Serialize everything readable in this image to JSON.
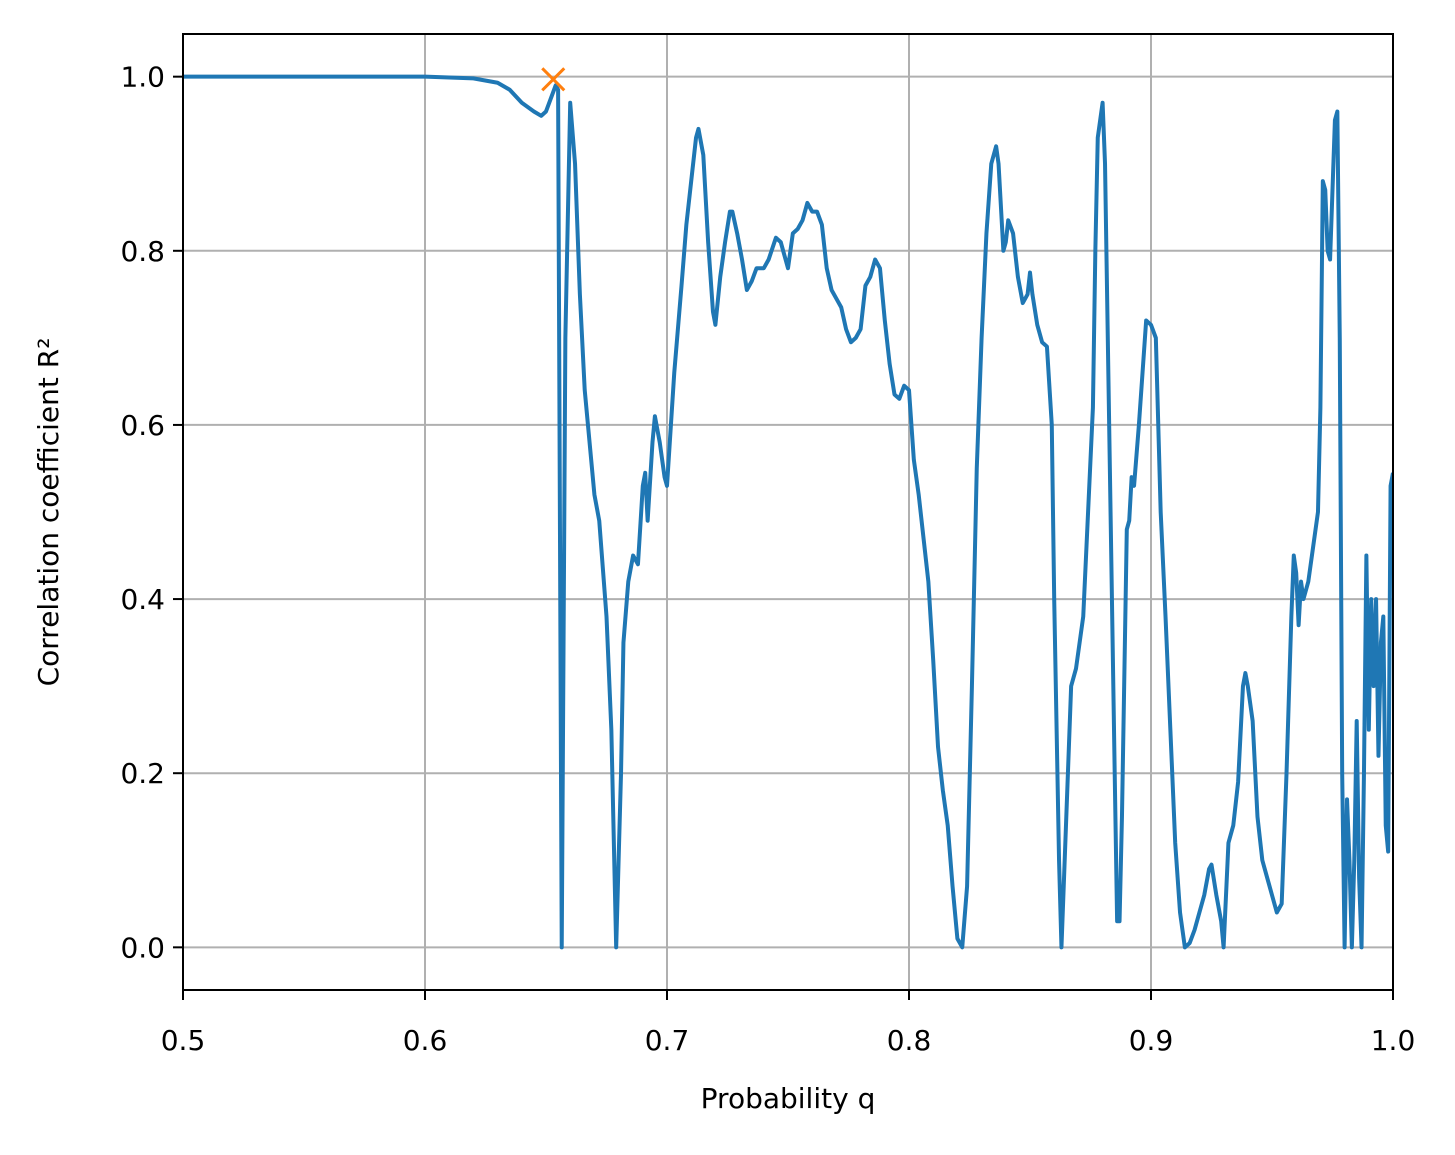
{
  "chart_data": {
    "type": "line",
    "xlabel": "Probability q",
    "ylabel": "Correlation coefficient R²",
    "xlim": [
      0.5,
      1.0
    ],
    "ylim": [
      -0.049,
      1.049
    ],
    "xticks": [
      0.5,
      0.6,
      0.7,
      0.8,
      0.9,
      {
        "value": 1,
        "label": "1.0"
      }
    ],
    "yticks": [
      {
        "value": 0,
        "label": "0.0"
      },
      0.2,
      0.4,
      0.6,
      0.8,
      {
        "value": 1,
        "label": "1.0"
      }
    ],
    "grid": true,
    "x": [
      0.5,
      0.6,
      0.62,
      0.63,
      0.635,
      0.64,
      0.645,
      0.648,
      0.65,
      0.652,
      0.654,
      0.655,
      0.6565,
      0.658,
      0.66,
      0.662,
      0.664,
      0.666,
      0.67,
      0.672,
      0.675,
      0.677,
      0.679,
      0.681,
      0.682,
      0.684,
      0.686,
      0.688,
      0.69,
      0.691,
      0.692,
      0.694,
      0.695,
      0.697,
      0.699,
      0.7,
      0.703,
      0.706,
      0.708,
      0.71,
      0.712,
      0.713,
      0.715,
      0.717,
      0.719,
      0.72,
      0.722,
      0.724,
      0.726,
      0.727,
      0.729,
      0.731,
      0.733,
      0.735,
      0.737,
      0.74,
      0.742,
      0.745,
      0.747,
      0.749,
      0.75,
      0.752,
      0.754,
      0.756,
      0.758,
      0.76,
      0.762,
      0.764,
      0.766,
      0.768,
      0.77,
      0.772,
      0.774,
      0.776,
      0.778,
      0.78,
      0.782,
      0.784,
      0.786,
      0.788,
      0.79,
      0.792,
      0.794,
      0.796,
      0.798,
      0.8,
      0.802,
      0.804,
      0.806,
      0.808,
      0.81,
      0.812,
      0.814,
      0.816,
      0.818,
      0.82,
      0.822,
      0.824,
      0.826,
      0.828,
      0.83,
      0.832,
      0.834,
      0.836,
      0.837,
      0.839,
      0.84,
      0.841,
      0.843,
      0.845,
      0.847,
      0.849,
      0.85,
      0.851,
      0.853,
      0.855,
      0.857,
      0.859,
      0.86,
      0.862,
      0.863,
      0.865,
      0.867,
      0.869,
      0.872,
      0.874,
      0.876,
      0.877,
      0.878,
      0.879,
      0.88,
      0.881,
      0.883,
      0.885,
      0.886,
      0.887,
      0.888,
      0.89,
      0.891,
      0.892,
      0.893,
      0.895,
      0.897,
      0.898,
      0.9,
      0.902,
      0.904,
      0.906,
      0.908,
      0.91,
      0.912,
      0.914,
      0.916,
      0.918,
      0.92,
      0.922,
      0.924,
      0.925,
      0.927,
      0.929,
      0.93,
      0.932,
      0.934,
      0.936,
      0.938,
      0.939,
      0.94,
      0.942,
      0.944,
      0.946,
      0.948,
      0.95,
      0.952,
      0.954,
      0.956,
      0.958,
      0.959,
      0.96,
      0.961,
      0.962,
      0.963,
      0.965,
      0.967,
      0.969,
      0.97,
      0.971,
      0.972,
      0.973,
      0.974,
      0.975,
      0.976,
      0.977,
      0.978,
      0.979,
      0.98,
      0.981,
      0.982,
      0.983,
      0.984,
      0.985,
      0.986,
      0.987,
      0.988,
      0.989,
      0.99,
      0.991,
      0.992,
      0.993,
      0.994,
      0.995,
      0.996,
      0.997,
      0.998,
      0.999,
      1.0
    ],
    "series": [
      {
        "color": "#1f77b4",
        "values": [
          1.0,
          1.0,
          0.998,
          0.993,
          0.985,
          0.97,
          0.96,
          0.955,
          0.96,
          0.975,
          0.99,
          0.985,
          0.0,
          0.7,
          0.97,
          0.9,
          0.75,
          0.64,
          0.52,
          0.49,
          0.38,
          0.25,
          0.0,
          0.2,
          0.35,
          0.42,
          0.45,
          0.44,
          0.53,
          0.545,
          0.49,
          0.58,
          0.61,
          0.58,
          0.54,
          0.53,
          0.66,
          0.76,
          0.83,
          0.88,
          0.93,
          0.94,
          0.91,
          0.81,
          0.73,
          0.715,
          0.77,
          0.81,
          0.845,
          0.845,
          0.82,
          0.79,
          0.755,
          0.765,
          0.78,
          0.78,
          0.79,
          0.815,
          0.81,
          0.79,
          0.78,
          0.82,
          0.825,
          0.835,
          0.855,
          0.845,
          0.845,
          0.83,
          0.78,
          0.755,
          0.745,
          0.735,
          0.71,
          0.695,
          0.7,
          0.71,
          0.76,
          0.77,
          0.79,
          0.78,
          0.72,
          0.67,
          0.635,
          0.63,
          0.645,
          0.64,
          0.56,
          0.52,
          0.47,
          0.42,
          0.33,
          0.23,
          0.18,
          0.14,
          0.07,
          0.01,
          0.0,
          0.07,
          0.3,
          0.55,
          0.7,
          0.82,
          0.9,
          0.92,
          0.9,
          0.8,
          0.81,
          0.835,
          0.82,
          0.77,
          0.74,
          0.75,
          0.775,
          0.75,
          0.715,
          0.695,
          0.69,
          0.6,
          0.4,
          0.1,
          0.0,
          0.15,
          0.3,
          0.32,
          0.38,
          0.5,
          0.62,
          0.8,
          0.93,
          0.95,
          0.97,
          0.9,
          0.55,
          0.2,
          0.03,
          0.03,
          0.15,
          0.48,
          0.49,
          0.54,
          0.53,
          0.6,
          0.68,
          0.72,
          0.715,
          0.7,
          0.5,
          0.38,
          0.25,
          0.12,
          0.04,
          0.0,
          0.005,
          0.02,
          0.04,
          0.06,
          0.09,
          0.095,
          0.06,
          0.03,
          0.0,
          0.12,
          0.14,
          0.19,
          0.3,
          0.315,
          0.3,
          0.26,
          0.15,
          0.1,
          0.08,
          0.06,
          0.04,
          0.05,
          0.2,
          0.38,
          0.45,
          0.43,
          0.37,
          0.42,
          0.4,
          0.42,
          0.46,
          0.5,
          0.62,
          0.88,
          0.87,
          0.8,
          0.79,
          0.87,
          0.95,
          0.96,
          0.7,
          0.2,
          0.0,
          0.17,
          0.1,
          0.0,
          0.1,
          0.26,
          0.08,
          0.0,
          0.2,
          0.45,
          0.25,
          0.4,
          0.3,
          0.4,
          0.22,
          0.35,
          0.38,
          0.14,
          0.11,
          0.53,
          0.545
        ]
      }
    ],
    "marker": {
      "x": 0.653,
      "y": 0.997,
      "color": "#ff7f0e"
    }
  }
}
